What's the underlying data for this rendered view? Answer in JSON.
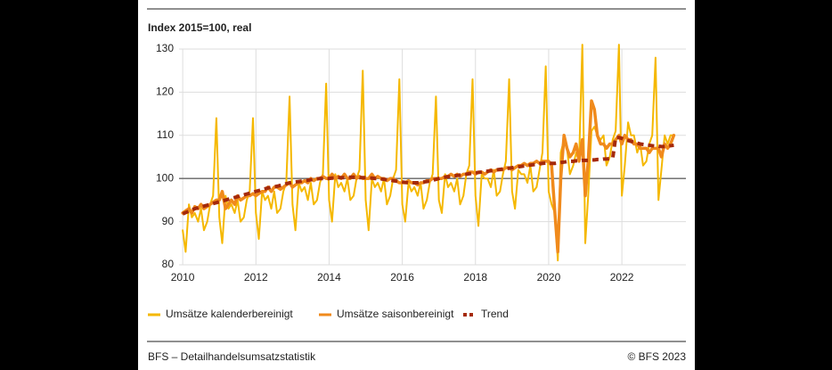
{
  "chart_data": {
    "type": "line",
    "title": "Index 2015=100, real",
    "x": [
      2010.0,
      2010.08,
      2010.17,
      2010.25,
      2010.33,
      2010.42,
      2010.5,
      2010.58,
      2010.67,
      2010.75,
      2010.83,
      2010.92,
      2011.0,
      2011.08,
      2011.17,
      2011.25,
      2011.33,
      2011.42,
      2011.5,
      2011.58,
      2011.67,
      2011.75,
      2011.83,
      2011.92,
      2012.0,
      2012.08,
      2012.17,
      2012.25,
      2012.33,
      2012.42,
      2012.5,
      2012.58,
      2012.67,
      2012.75,
      2012.83,
      2012.92,
      2013.0,
      2013.08,
      2013.17,
      2013.25,
      2013.33,
      2013.42,
      2013.5,
      2013.58,
      2013.67,
      2013.75,
      2013.83,
      2013.92,
      2014.0,
      2014.08,
      2014.17,
      2014.25,
      2014.33,
      2014.42,
      2014.5,
      2014.58,
      2014.67,
      2014.75,
      2014.83,
      2014.92,
      2015.0,
      2015.08,
      2015.17,
      2015.25,
      2015.33,
      2015.42,
      2015.5,
      2015.58,
      2015.67,
      2015.75,
      2015.83,
      2015.92,
      2016.0,
      2016.08,
      2016.17,
      2016.25,
      2016.33,
      2016.42,
      2016.5,
      2016.58,
      2016.67,
      2016.75,
      2016.83,
      2016.92,
      2017.0,
      2017.08,
      2017.17,
      2017.25,
      2017.33,
      2017.42,
      2017.5,
      2017.58,
      2017.67,
      2017.75,
      2017.83,
      2017.92,
      2018.0,
      2018.08,
      2018.17,
      2018.25,
      2018.33,
      2018.42,
      2018.5,
      2018.58,
      2018.67,
      2018.75,
      2018.83,
      2018.92,
      2019.0,
      2019.08,
      2019.17,
      2019.25,
      2019.33,
      2019.42,
      2019.5,
      2019.58,
      2019.67,
      2019.75,
      2019.83,
      2019.92,
      2020.0,
      2020.08,
      2020.17,
      2020.25,
      2020.33,
      2020.42,
      2020.5,
      2020.58,
      2020.67,
      2020.75,
      2020.83,
      2020.92,
      2021.0,
      2021.08,
      2021.17,
      2021.25,
      2021.33,
      2021.42,
      2021.5,
      2021.58,
      2021.67,
      2021.75,
      2021.83,
      2021.92,
      2022.0,
      2022.08,
      2022.17,
      2022.25,
      2022.33,
      2022.42,
      2022.5,
      2022.58,
      2022.67,
      2022.75,
      2022.83,
      2022.92,
      2023.0,
      2023.08,
      2023.17,
      2023.25,
      2023.33,
      2023.42
    ],
    "xlim": [
      2009.9,
      2023.75
    ],
    "xticks": [
      2010,
      2012,
      2014,
      2016,
      2018,
      2020,
      2022
    ],
    "ylim": [
      80,
      130
    ],
    "yticks": [
      80,
      90,
      100,
      110,
      120,
      130
    ],
    "reference_line": 100,
    "grid": true,
    "series": [
      {
        "name": "Umsätze kalenderbereinigt",
        "color": "#f5b800",
        "style": "solid",
        "values": [
          88,
          83,
          94,
          91,
          92,
          90,
          93,
          88,
          90,
          94,
          96,
          114,
          91,
          85,
          96,
          93,
          94,
          92,
          95,
          90,
          91,
          95,
          97,
          114,
          92,
          86,
          97,
          95,
          96,
          93,
          97,
          92,
          93,
          97,
          99,
          119,
          94,
          88,
          99,
          97,
          98,
          95,
          99,
          94,
          95,
          99,
          101,
          122,
          95,
          90,
          101,
          98,
          99,
          97,
          100,
          95,
          96,
          100,
          102,
          125,
          95,
          88,
          100,
          98,
          99,
          97,
          100,
          94,
          96,
          100,
          102,
          123,
          94,
          90,
          99,
          97,
          98,
          96,
          99,
          93,
          95,
          99,
          101,
          119,
          95,
          92,
          101,
          98,
          99,
          97,
          100,
          94,
          96,
          101,
          103,
          123,
          96,
          89,
          101,
          100,
          100,
          98,
          102,
          96,
          97,
          101,
          104,
          123,
          97,
          93,
          102,
          101,
          101,
          99,
          103,
          97,
          98,
          102,
          106,
          126,
          97,
          94,
          92,
          81,
          106,
          109,
          107,
          101,
          103,
          106,
          104,
          131,
          85,
          96,
          111,
          112,
          110,
          109,
          110,
          103,
          105,
          109,
          111,
          131,
          96,
          103,
          113,
          110,
          110,
          106,
          108,
          103,
          104,
          108,
          110,
          128,
          95,
          102,
          110,
          108,
          110,
          110
        ]
      },
      {
        "name": "Umsätze saisonbereinigt",
        "color": "#f08a1c",
        "style": "solid",
        "values": [
          92,
          92.5,
          93,
          92,
          93.5,
          93,
          94,
          93,
          93.5,
          94,
          94.5,
          95,
          95,
          97,
          93,
          94,
          95,
          94,
          96,
          95,
          95.5,
          96,
          96,
          96.5,
          96,
          96.5,
          97,
          97,
          98,
          97,
          98,
          98,
          97.5,
          98,
          98.5,
          99,
          98,
          98.5,
          99,
          99,
          99.5,
          99,
          100,
          99.5,
          100,
          100,
          100.5,
          100,
          100,
          101,
          100,
          100.5,
          100,
          101,
          100,
          100,
          101,
          100,
          100.5,
          100,
          100,
          100,
          101,
          100,
          100.5,
          100,
          100,
          99.5,
          100,
          100,
          99.5,
          99,
          99,
          99,
          99.5,
          99,
          99,
          98.5,
          99,
          99,
          99.5,
          99.5,
          100,
          100,
          100,
          100,
          100.5,
          100.5,
          101,
          100.5,
          101,
          100.5,
          101,
          101,
          101.5,
          101.5,
          101,
          101.5,
          101.5,
          101,
          101.5,
          102,
          101.5,
          102,
          102,
          102,
          102.5,
          102.5,
          102,
          102.5,
          103,
          103,
          103.5,
          103,
          103.5,
          103.5,
          104,
          103.5,
          104,
          104,
          104,
          103,
          92,
          83,
          100,
          110,
          107,
          105,
          106,
          108,
          104,
          109,
          96,
          104,
          118,
          116,
          110,
          108,
          108,
          107,
          108,
          108,
          109,
          110,
          108,
          110,
          109,
          109,
          108,
          108,
          107,
          107,
          107,
          106,
          107,
          107,
          107,
          105,
          108,
          107,
          108,
          110
        ]
      },
      {
        "name": "Trend",
        "color": "#a52a0a",
        "style": "dashed",
        "values": [
          91.8,
          92.1,
          92.4,
          92.7,
          93,
          93.2,
          93.4,
          93.6,
          93.8,
          94,
          94.2,
          94.4,
          94.6,
          94.8,
          95,
          95.2,
          95.4,
          95.6,
          95.8,
          96,
          96.2,
          96.4,
          96.6,
          96.8,
          97,
          97.2,
          97.4,
          97.6,
          97.8,
          98,
          98.1,
          98.2,
          98.4,
          98.6,
          98.8,
          99,
          99.1,
          99.2,
          99.3,
          99.4,
          99.5,
          99.6,
          99.7,
          99.8,
          99.9,
          100,
          100,
          100,
          100,
          100.1,
          100.1,
          100.2,
          100.2,
          100.2,
          100.3,
          100.3,
          100.3,
          100.3,
          100.2,
          100.2,
          100.2,
          100.1,
          100.1,
          100,
          100,
          99.9,
          99.8,
          99.7,
          99.6,
          99.5,
          99.4,
          99.3,
          99.2,
          99.1,
          99,
          99,
          99,
          99,
          99.1,
          99.2,
          99.3,
          99.4,
          99.6,
          99.8,
          100,
          100.2,
          100.3,
          100.4,
          100.5,
          100.6,
          100.7,
          100.8,
          100.9,
          101,
          101.1,
          101.2,
          101.3,
          101.4,
          101.5,
          101.6,
          101.7,
          101.8,
          101.9,
          102,
          102.1,
          102.2,
          102.3,
          102.4,
          102.5,
          102.6,
          102.7,
          102.8,
          102.9,
          103,
          103.1,
          103.2,
          103.3,
          103.4,
          103.5,
          103.6,
          103.6,
          103.5,
          103.5,
          103.6,
          103.7,
          103.8,
          103.9,
          104,
          104,
          104.1,
          104.1,
          104.2,
          104.2,
          104.2,
          104.3,
          104.3,
          104.4,
          104.4,
          104.5,
          104.5,
          104.6,
          104.7,
          109.5,
          109.5,
          109.3,
          109,
          108.8,
          108.6,
          108.4,
          108.2,
          108,
          107.9,
          107.8,
          107.7,
          107.6,
          107.5,
          107.5,
          107.4,
          107.4,
          107.5,
          107.6,
          107.7
        ]
      }
    ]
  },
  "footer": {
    "source": "BFS – Detailhandelsumsatzstatistik",
    "copyright": "© BFS 2023"
  }
}
